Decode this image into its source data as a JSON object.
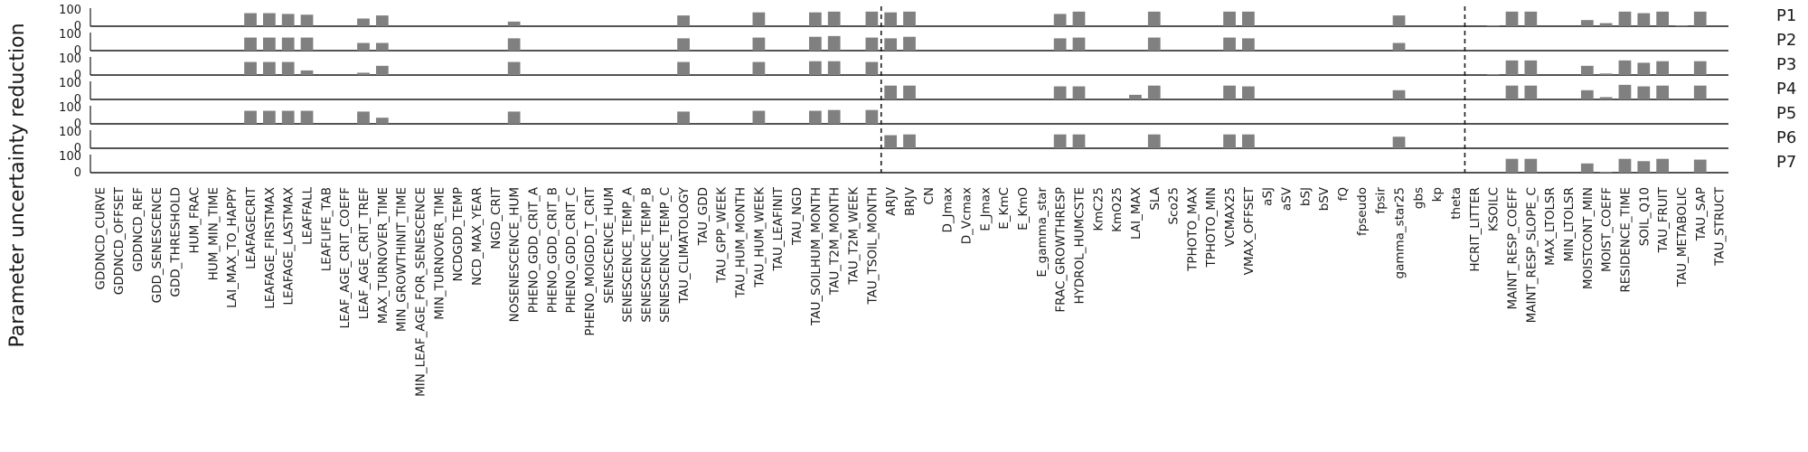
{
  "chart_data": {
    "type": "bar",
    "ylabel": "Parameter uncertainty reduction",
    "ylim": [
      0,
      100
    ],
    "yticks": [
      "100",
      "0"
    ],
    "bar_color": "#808080",
    "separator_after": [
      "TAU_TSOIL_MONTH",
      "theta"
    ],
    "categories": [
      "GDDNCD_CURVE",
      "GDDNCD_OFFSET",
      "GDDNCD_REF",
      "GDD_SENESCENCE",
      "GDD_THRESHOLD",
      "HUM_FRAC",
      "HUM_MIN_TIME",
      "LAI_MAX_TO_HAPPY",
      "LEAFAGECRIT",
      "LEAFAGE_FIRSTMAX",
      "LEAFAGE_LASTMAX",
      "LEAFFALL",
      "LEAFLIFE_TAB",
      "LEAF_AGE_CRIT_COEFF",
      "LEAF_AGE_CRIT_TREF",
      "MAX_TURNOVER_TIME",
      "MIN_GROWTHINIT_TIME",
      "MIN_LEAF_AGE_FOR_SENESCENCE",
      "MIN_TURNOVER_TIME",
      "NCDGDD_TEMP",
      "NCD_MAX_YEAR",
      "NGD_CRIT",
      "NOSENESCENCE_HUM",
      "PHENO_GDD_CRIT_A",
      "PHENO_GDD_CRIT_B",
      "PHENO_GDD_CRIT_C",
      "PHENO_MOIGDD_T_CRIT",
      "SENESCENCE_HUM",
      "SENESCENCE_TEMP_A",
      "SENESCENCE_TEMP_B",
      "SENESCENCE_TEMP_C",
      "TAU_CLIMATOLOGY",
      "TAU_GDD",
      "TAU_GPP_WEEK",
      "TAU_HUM_MONTH",
      "TAU_HUM_WEEK",
      "TAU_LEAFINIT",
      "TAU_NGD",
      "TAU_SOILHUM_MONTH",
      "TAU_T2M_MONTH",
      "TAU_T2M_WEEK",
      "TAU_TSOIL_MONTH",
      "ARJV",
      "BRJV",
      "CN",
      "D_Jmax",
      "D_Vcmax",
      "E_Jmax",
      "E_KmC",
      "E_KmO",
      "E_gamma_star",
      "FRAC_GROWTHRESP",
      "HYDROL_HUMCSTE",
      "KmC25",
      "KmO25",
      "LAI_MAX",
      "SLA",
      "Sco25",
      "TPHOTO_MAX",
      "TPHOTO_MIN",
      "VCMAX25",
      "VMAX_OFFSET",
      "aSJ",
      "aSV",
      "bSJ",
      "bSV",
      "fQ",
      "fpseudo",
      "fpsir",
      "gamma_star25",
      "gbs",
      "kp",
      "theta",
      "HCRIT_LITTER",
      "KSOILC",
      "MAINT_RESP_COEFF",
      "MAINT_RESP_SLOPE_C",
      "MAX_LTOLSR",
      "MIN_LTOLSR",
      "MOISTCONT_MIN",
      "MOIST_COEFF",
      "RESIDENCE_TIME",
      "SOIL_Q10",
      "TAU_FRUIT",
      "TAU_METABOLIC",
      "TAU_SAP",
      "TAU_STRUCT"
    ],
    "series": [
      {
        "name": "P1",
        "values": {
          "LEAFAGECRIT": 85,
          "LEAFAGE_FIRSTMAX": 85,
          "LEAFAGE_LASTMAX": 80,
          "LEAFFALL": 75,
          "LEAF_AGE_CRIT_TREF": 50,
          "MAX_TURNOVER_TIME": 70,
          "NOSENESCENCE_HUM": 30,
          "TAU_CLIMATOLOGY": 70,
          "TAU_HUM_WEEK": 90,
          "TAU_SOILHUM_MONTH": 90,
          "TAU_T2M_MONTH": 95,
          "TAU_TSOIL_MONTH": 95,
          "ARJV": 90,
          "BRJV": 95,
          "FRAC_GROWTHRESP": 80,
          "HYDROL_HUMCSTE": 95,
          "SLA": 95,
          "VCMAX25": 95,
          "VMAX_OFFSET": 95,
          "gamma_star25": 70,
          "KSOILC": 5,
          "MAINT_RESP_COEFF": 95,
          "MAINT_RESP_SLOPE_C": 95,
          "MOISTCONT_MIN": 40,
          "MOIST_COEFF": 20,
          "RESIDENCE_TIME": 95,
          "SOIL_Q10": 85,
          "TAU_FRUIT": 95,
          "TAU_METABOLIC": 5,
          "TAU_SAP": 95
        }
      },
      {
        "name": "P2",
        "values": {
          "LEAFAGECRIT": 85,
          "LEAFAGE_FIRSTMAX": 85,
          "LEAFAGE_LASTMAX": 85,
          "LEAFFALL": 85,
          "LEAF_AGE_CRIT_TREF": 50,
          "MAX_TURNOVER_TIME": 50,
          "NOSENESCENCE_HUM": 80,
          "TAU_CLIMATOLOGY": 80,
          "TAU_HUM_WEEK": 85,
          "TAU_SOILHUM_MONTH": 90,
          "TAU_T2M_MONTH": 95,
          "TAU_TSOIL_MONTH": 85,
          "ARJV": 80,
          "BRJV": 90,
          "FRAC_GROWTHRESP": 80,
          "HYDROL_HUMCSTE": 85,
          "SLA": 85,
          "VCMAX25": 85,
          "VMAX_OFFSET": 80,
          "gamma_star25": 50
        }
      },
      {
        "name": "P3",
        "values": {
          "LEAFAGECRIT": 85,
          "LEAFAGE_FIRSTMAX": 85,
          "LEAFAGE_LASTMAX": 85,
          "LEAFFALL": 30,
          "LEAF_AGE_CRIT_TREF": 15,
          "MAX_TURNOVER_TIME": 60,
          "NOSENESCENCE_HUM": 85,
          "TAU_CLIMATOLOGY": 85,
          "TAU_HUM_WEEK": 85,
          "TAU_SOILHUM_MONTH": 90,
          "TAU_T2M_MONTH": 90,
          "TAU_TSOIL_MONTH": 85,
          "KSOILC": 5,
          "MAINT_RESP_COEFF": 95,
          "MAINT_RESP_SLOPE_C": 95,
          "MOISTCONT_MIN": 60,
          "MOIST_COEFF": 10,
          "RESIDENCE_TIME": 95,
          "SOIL_Q10": 80,
          "TAU_FRUIT": 90,
          "TAU_SAP": 90
        }
      },
      {
        "name": "P4",
        "values": {
          "ARJV": 90,
          "BRJV": 90,
          "FRAC_GROWTHRESP": 85,
          "HYDROL_HUMCSTE": 85,
          "LAI_MAX": 30,
          "SLA": 90,
          "VCMAX25": 90,
          "VMAX_OFFSET": 85,
          "gamma_star25": 60,
          "MAINT_RESP_COEFF": 90,
          "MAINT_RESP_SLOPE_C": 90,
          "MOISTCONT_MIN": 60,
          "MOIST_COEFF": 15,
          "RESIDENCE_TIME": 95,
          "SOIL_Q10": 85,
          "TAU_FRUIT": 90,
          "TAU_SAP": 90
        }
      },
      {
        "name": "P5",
        "values": {
          "LEAFAGECRIT": 85,
          "LEAFAGE_FIRSTMAX": 85,
          "LEAFAGE_LASTMAX": 85,
          "LEAFFALL": 85,
          "LEAF_AGE_CRIT_TREF": 80,
          "MAX_TURNOVER_TIME": 40,
          "NOSENESCENCE_HUM": 80,
          "TAU_CLIMATOLOGY": 80,
          "TAU_HUM_WEEK": 85,
          "TAU_SOILHUM_MONTH": 85,
          "TAU_T2M_MONTH": 90,
          "TAU_TSOIL_MONTH": 90
        }
      },
      {
        "name": "P6",
        "values": {
          "ARJV": 85,
          "BRJV": 90,
          "FRAC_GROWTHRESP": 90,
          "HYDROL_HUMCSTE": 90,
          "SLA": 90,
          "VCMAX25": 90,
          "VMAX_OFFSET": 90,
          "gamma_star25": 75
        }
      },
      {
        "name": "P7",
        "values": {
          "MAINT_RESP_COEFF": 90,
          "MAINT_RESP_SLOPE_C": 90,
          "MOISTCONT_MIN": 60,
          "MOIST_COEFF": 5,
          "RESIDENCE_TIME": 90,
          "SOIL_Q10": 75,
          "TAU_FRUIT": 90,
          "TAU_SAP": 85
        }
      }
    ]
  }
}
